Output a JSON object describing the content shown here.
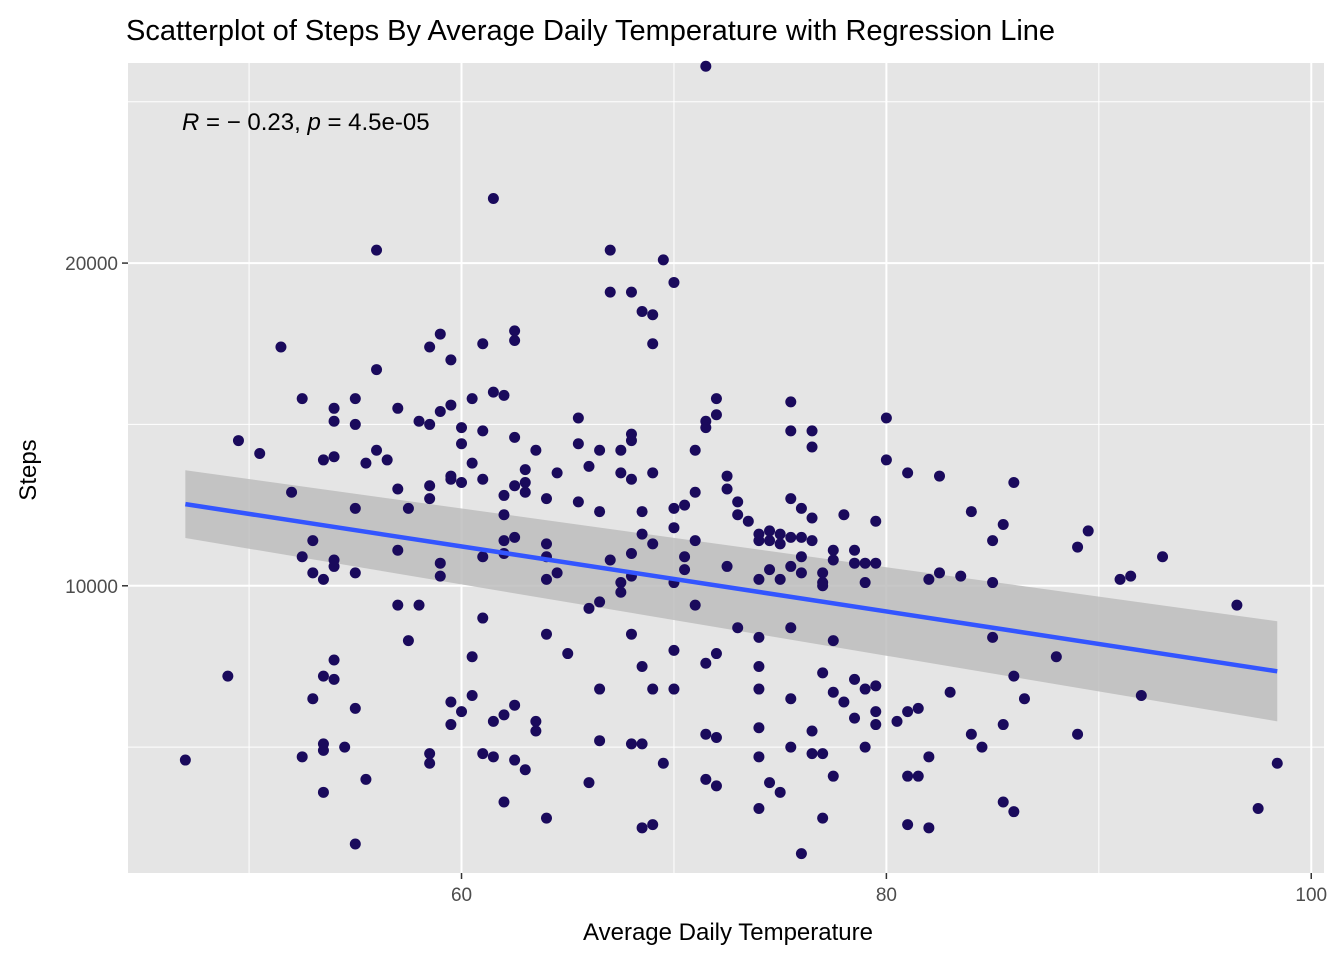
{
  "chart_data": {
    "type": "scatter",
    "title": "Scatterplot of Steps By Average Daily Temperature with Regression Line",
    "xlabel": "Average Daily Temperature",
    "ylabel": "Steps",
    "xlim": [
      44.3,
      100.6
    ],
    "ylim": [
      1100,
      26200
    ],
    "x_ticks": [
      60,
      80,
      100
    ],
    "x_tick_labels": [
      "60",
      "80",
      "100"
    ],
    "x_minor_ticks": [
      50,
      70,
      90
    ],
    "y_ticks": [
      10000,
      20000
    ],
    "y_tick_labels": [
      "10000",
      "20000"
    ],
    "y_minor_ticks": [
      5000,
      15000,
      25000
    ],
    "grid": true,
    "legend": "none",
    "colors": {
      "panel_background": "#e5e5e5",
      "grid": "#ffffff",
      "points": "#1a0a5c",
      "regression_line": "#3355ff",
      "confidence_band": "#bdbdbd"
    },
    "annotation": {
      "r_symbol": "R",
      "r_text": " = − 0.23, ",
      "p_symbol": "p",
      "p_text": " = 4.5e-05"
    },
    "regression": {
      "x": [
        47.0,
        98.4
      ],
      "y": [
        12530,
        7350
      ],
      "band_upper": [
        13580,
        8900
      ],
      "band_lower": [
        11480,
        5800
      ]
    },
    "points": [
      [
        47,
        4600
      ],
      [
        49,
        7200
      ],
      [
        49.5,
        14500
      ],
      [
        50.5,
        14100
      ],
      [
        51.5,
        17400
      ],
      [
        52,
        12900
      ],
      [
        52.5,
        4700
      ],
      [
        52.5,
        10900
      ],
      [
        52.5,
        15800
      ],
      [
        53,
        10400
      ],
      [
        53,
        11400
      ],
      [
        53,
        6500
      ],
      [
        53.5,
        13900
      ],
      [
        53.5,
        10200
      ],
      [
        53.5,
        7200
      ],
      [
        53.5,
        5100
      ],
      [
        53.5,
        4900
      ],
      [
        53.5,
        3600
      ],
      [
        54,
        15500
      ],
      [
        54,
        15100
      ],
      [
        54,
        14000
      ],
      [
        54,
        10800
      ],
      [
        54,
        10600
      ],
      [
        54,
        7700
      ],
      [
        54,
        7100
      ],
      [
        54.5,
        5000
      ],
      [
        55,
        15800
      ],
      [
        55,
        15000
      ],
      [
        55,
        12400
      ],
      [
        55,
        10400
      ],
      [
        55,
        6200
      ],
      [
        55,
        2000
      ],
      [
        55.5,
        13800
      ],
      [
        55.5,
        4000
      ],
      [
        56,
        20400
      ],
      [
        56,
        16700
      ],
      [
        56,
        14200
      ],
      [
        56.5,
        13900
      ],
      [
        57,
        15500
      ],
      [
        57,
        13000
      ],
      [
        57,
        11100
      ],
      [
        57,
        9400
      ],
      [
        57.5,
        12400
      ],
      [
        57.5,
        8300
      ],
      [
        58,
        15100
      ],
      [
        58,
        9400
      ],
      [
        58.5,
        17400
      ],
      [
        58.5,
        15000
      ],
      [
        58.5,
        13100
      ],
      [
        58.5,
        12700
      ],
      [
        58.5,
        4800
      ],
      [
        58.5,
        4500
      ],
      [
        59,
        17800
      ],
      [
        59,
        15400
      ],
      [
        59,
        10700
      ],
      [
        59,
        10300
      ],
      [
        59.5,
        17000
      ],
      [
        59.5,
        15600
      ],
      [
        59.5,
        13400
      ],
      [
        59.5,
        13300
      ],
      [
        59.5,
        6400
      ],
      [
        59.5,
        5700
      ],
      [
        60,
        14900
      ],
      [
        60,
        14400
      ],
      [
        60,
        13200
      ],
      [
        60,
        6100
      ],
      [
        60.5,
        15800
      ],
      [
        60.5,
        13800
      ],
      [
        60.5,
        7800
      ],
      [
        60.5,
        6600
      ],
      [
        61,
        17500
      ],
      [
        61,
        14800
      ],
      [
        61,
        13300
      ],
      [
        61,
        10900
      ],
      [
        61,
        9000
      ],
      [
        61,
        4800
      ],
      [
        61.5,
        22000
      ],
      [
        61.5,
        16000
      ],
      [
        61.5,
        5800
      ],
      [
        61.5,
        4700
      ],
      [
        62,
        15900
      ],
      [
        62,
        12800
      ],
      [
        62,
        12200
      ],
      [
        62,
        11400
      ],
      [
        62,
        11000
      ],
      [
        62,
        6000
      ],
      [
        62,
        3300
      ],
      [
        62.5,
        17900
      ],
      [
        62.5,
        17600
      ],
      [
        62.5,
        14600
      ],
      [
        62.5,
        13100
      ],
      [
        62.5,
        11500
      ],
      [
        62.5,
        6300
      ],
      [
        62.5,
        4600
      ],
      [
        63,
        13600
      ],
      [
        63,
        13200
      ],
      [
        63,
        12900
      ],
      [
        63,
        4300
      ],
      [
        63.5,
        14200
      ],
      [
        63.5,
        5800
      ],
      [
        63.5,
        5500
      ],
      [
        64,
        12700
      ],
      [
        64,
        11300
      ],
      [
        64,
        10900
      ],
      [
        64,
        10200
      ],
      [
        64,
        8500
      ],
      [
        64,
        2800
      ],
      [
        64.5,
        13500
      ],
      [
        64.5,
        10400
      ],
      [
        65,
        7900
      ],
      [
        65.5,
        15200
      ],
      [
        65.5,
        14400
      ],
      [
        65.5,
        12600
      ],
      [
        66,
        13700
      ],
      [
        66,
        9300
      ],
      [
        66,
        3900
      ],
      [
        66.5,
        14200
      ],
      [
        66.5,
        12300
      ],
      [
        66.5,
        9500
      ],
      [
        66.5,
        6800
      ],
      [
        66.5,
        5200
      ],
      [
        67,
        20400
      ],
      [
        67,
        19100
      ],
      [
        67,
        10800
      ],
      [
        67.5,
        14200
      ],
      [
        67.5,
        13500
      ],
      [
        67.5,
        10100
      ],
      [
        67.5,
        9800
      ],
      [
        68,
        19100
      ],
      [
        68,
        14700
      ],
      [
        68,
        14500
      ],
      [
        68,
        13300
      ],
      [
        68,
        11000
      ],
      [
        68,
        10300
      ],
      [
        68,
        8500
      ],
      [
        68,
        5100
      ],
      [
        68.5,
        18500
      ],
      [
        68.5,
        12300
      ],
      [
        68.5,
        11600
      ],
      [
        68.5,
        7500
      ],
      [
        68.5,
        5100
      ],
      [
        68.5,
        2500
      ],
      [
        69,
        18400
      ],
      [
        69,
        17500
      ],
      [
        69,
        13500
      ],
      [
        69,
        11300
      ],
      [
        69,
        6800
      ],
      [
        69,
        2600
      ],
      [
        69.5,
        20100
      ],
      [
        69.5,
        4500
      ],
      [
        70,
        19400
      ],
      [
        70,
        12400
      ],
      [
        70,
        11800
      ],
      [
        70,
        10100
      ],
      [
        70,
        8000
      ],
      [
        70,
        6800
      ],
      [
        70.5,
        12500
      ],
      [
        70.5,
        10900
      ],
      [
        70.5,
        10500
      ],
      [
        71,
        14200
      ],
      [
        71,
        12900
      ],
      [
        71,
        11400
      ],
      [
        71,
        9400
      ],
      [
        71.5,
        26100
      ],
      [
        71.5,
        15100
      ],
      [
        71.5,
        14900
      ],
      [
        71.5,
        7600
      ],
      [
        71.5,
        5400
      ],
      [
        71.5,
        4000
      ],
      [
        72,
        15800
      ],
      [
        72,
        15300
      ],
      [
        72,
        7900
      ],
      [
        72,
        5300
      ],
      [
        72,
        3800
      ],
      [
        72.5,
        13400
      ],
      [
        72.5,
        13000
      ],
      [
        72.5,
        10600
      ],
      [
        73,
        12600
      ],
      [
        73,
        12200
      ],
      [
        73,
        8700
      ],
      [
        73.5,
        12000
      ],
      [
        74,
        11600
      ],
      [
        74,
        11400
      ],
      [
        74,
        10200
      ],
      [
        74,
        8400
      ],
      [
        74,
        7500
      ],
      [
        74,
        6800
      ],
      [
        74,
        5600
      ],
      [
        74,
        4700
      ],
      [
        74,
        3100
      ],
      [
        74.5,
        11700
      ],
      [
        74.5,
        11400
      ],
      [
        74.5,
        10500
      ],
      [
        74.5,
        3900
      ],
      [
        75,
        11600
      ],
      [
        75,
        11300
      ],
      [
        75,
        10200
      ],
      [
        75,
        3600
      ],
      [
        75.5,
        15700
      ],
      [
        75.5,
        14800
      ],
      [
        75.5,
        12700
      ],
      [
        75.5,
        11500
      ],
      [
        75.5,
        10600
      ],
      [
        75.5,
        8700
      ],
      [
        75.5,
        6500
      ],
      [
        75.5,
        5000
      ],
      [
        76,
        12400
      ],
      [
        76,
        11500
      ],
      [
        76,
        10900
      ],
      [
        76,
        10400
      ],
      [
        76,
        1700
      ],
      [
        76.5,
        14800
      ],
      [
        76.5,
        14300
      ],
      [
        76.5,
        12100
      ],
      [
        76.5,
        11400
      ],
      [
        76.5,
        5500
      ],
      [
        76.5,
        4800
      ],
      [
        77,
        10400
      ],
      [
        77,
        10100
      ],
      [
        77,
        10000
      ],
      [
        77,
        7300
      ],
      [
        77,
        4800
      ],
      [
        77,
        2800
      ],
      [
        77.5,
        11100
      ],
      [
        77.5,
        10800
      ],
      [
        77.5,
        8300
      ],
      [
        77.5,
        6700
      ],
      [
        77.5,
        4100
      ],
      [
        78,
        12200
      ],
      [
        78,
        6400
      ],
      [
        78.5,
        11100
      ],
      [
        78.5,
        10700
      ],
      [
        78.5,
        7100
      ],
      [
        78.5,
        5900
      ],
      [
        79,
        10700
      ],
      [
        79,
        10100
      ],
      [
        79,
        6800
      ],
      [
        79,
        5000
      ],
      [
        79.5,
        10700
      ],
      [
        79.5,
        12000
      ],
      [
        79.5,
        6900
      ],
      [
        79.5,
        6100
      ],
      [
        79.5,
        5700
      ],
      [
        80,
        15200
      ],
      [
        80,
        13900
      ],
      [
        80.5,
        5800
      ],
      [
        81,
        13500
      ],
      [
        81,
        6100
      ],
      [
        81,
        4100
      ],
      [
        81,
        2600
      ],
      [
        81.5,
        6200
      ],
      [
        81.5,
        4100
      ],
      [
        82,
        10200
      ],
      [
        82,
        4700
      ],
      [
        82,
        2500
      ],
      [
        82.5,
        13400
      ],
      [
        82.5,
        10400
      ],
      [
        83,
        6700
      ],
      [
        83.5,
        10300
      ],
      [
        84,
        12300
      ],
      [
        84,
        5400
      ],
      [
        84.5,
        5000
      ],
      [
        85,
        11400
      ],
      [
        85,
        10100
      ],
      [
        85,
        8400
      ],
      [
        85.5,
        11900
      ],
      [
        85.5,
        5700
      ],
      [
        85.5,
        3300
      ],
      [
        86,
        13200
      ],
      [
        86,
        7200
      ],
      [
        86,
        3000
      ],
      [
        86.5,
        6500
      ],
      [
        88,
        7800
      ],
      [
        89,
        11200
      ],
      [
        89,
        5400
      ],
      [
        89.5,
        11700
      ],
      [
        91,
        10200
      ],
      [
        91.5,
        10300
      ],
      [
        92,
        6600
      ],
      [
        93,
        10900
      ],
      [
        96.5,
        9400
      ],
      [
        97.5,
        3100
      ],
      [
        98.4,
        4500
      ]
    ]
  }
}
